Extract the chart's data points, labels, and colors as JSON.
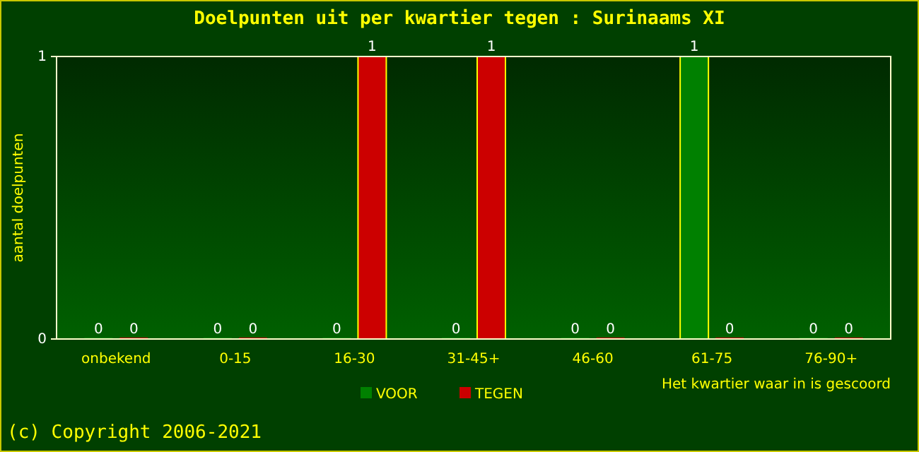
{
  "chart_data": {
    "type": "bar",
    "title": "Doelpunten uit per kwartier tegen : Surinaams XI",
    "categories": [
      "onbekend",
      "0-15",
      "16-30",
      "31-45+",
      "46-60",
      "61-75",
      "76-90+"
    ],
    "series": [
      {
        "name": "VOOR",
        "color": "#008000",
        "values": [
          0,
          0,
          0,
          0,
          0,
          1,
          0
        ]
      },
      {
        "name": "TEGEN",
        "color": "#cc0000",
        "values": [
          0,
          0,
          1,
          1,
          0,
          0,
          0
        ]
      }
    ],
    "ylim": [
      0,
      1
    ],
    "yticks": [
      0,
      1
    ],
    "ylabel": "aantal doelpunten",
    "xlabel": "Het kwartier waar in is gescoord",
    "data_labels": true,
    "legend": "bottom",
    "annotations": [
      "(c) Copyright 2006-2021"
    ]
  }
}
